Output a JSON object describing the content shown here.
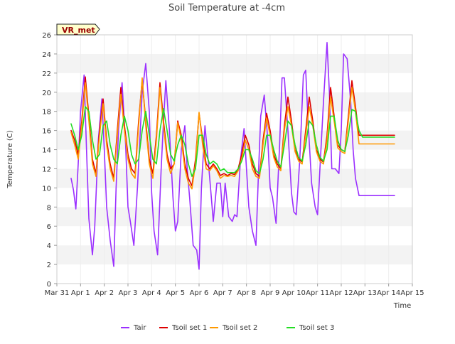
{
  "chart_data": {
    "type": "line",
    "title": "Soil Temperature at -4cm",
    "xlabel": "Time",
    "ylabel": "Temperature (C)",
    "station_label": "VR_met",
    "ylim": [
      0,
      26
    ],
    "y_ticks": [
      0,
      2,
      4,
      6,
      8,
      10,
      12,
      14,
      16,
      18,
      20,
      22,
      24,
      26
    ],
    "xlim": [
      0,
      15
    ],
    "x_ticks": [
      0,
      1,
      2,
      3,
      4,
      5,
      6,
      7,
      8,
      9,
      10,
      11,
      12,
      13,
      14,
      15
    ],
    "x_tick_labels": [
      "Mar 31",
      "Apr 1",
      "Apr 2",
      "Apr 3",
      "Apr 4",
      "Apr 5",
      "Apr 6",
      "Apr 7",
      "Apr 8",
      "Apr 9",
      "Apr 10",
      "Apr 11",
      "Apr 12",
      "Apr 13",
      "Apr 14",
      "Apr 15"
    ],
    "grid": "horizontal bands",
    "legend_position": "bottom",
    "series": [
      {
        "name": "Tair",
        "color": "#9b30ff",
        "x": [
          0.6,
          0.7,
          0.8,
          0.9,
          1.0,
          1.15,
          1.25,
          1.35,
          1.5,
          1.6,
          1.75,
          1.9,
          2.0,
          2.1,
          2.25,
          2.4,
          2.5,
          2.6,
          2.75,
          2.9,
          3.0,
          3.1,
          3.25,
          3.4,
          3.5,
          3.6,
          3.75,
          3.9,
          4.0,
          4.1,
          4.25,
          4.4,
          4.5,
          4.6,
          4.75,
          4.9,
          5.0,
          5.1,
          5.25,
          5.4,
          5.5,
          5.6,
          5.75,
          5.9,
          6.0,
          6.1,
          6.25,
          6.4,
          6.5,
          6.6,
          6.75,
          6.9,
          7.0,
          7.1,
          7.25,
          7.4,
          7.5,
          7.6,
          7.75,
          7.9,
          8.0,
          8.1,
          8.25,
          8.4,
          8.5,
          8.6,
          8.75,
          8.9,
          9.0,
          9.1,
          9.25,
          9.4,
          9.5,
          9.6,
          9.75,
          9.9,
          10.0,
          10.1,
          10.25,
          10.4,
          10.5,
          10.6,
          10.75,
          10.9,
          11.0,
          11.1,
          11.25,
          11.4,
          11.5,
          11.6,
          11.75,
          11.9,
          12.0,
          12.1,
          12.25,
          12.4,
          12.5,
          12.6,
          12.75,
          12.9,
          13.0,
          13.1,
          13.25,
          13.4,
          13.5,
          13.6,
          13.75,
          13.9,
          14.0,
          14.1,
          14.25
        ],
        "values": [
          11.0,
          9.8,
          7.8,
          12.5,
          18.0,
          21.8,
          14.0,
          6.8,
          3.0,
          6.0,
          15.0,
          19.3,
          14.0,
          8.0,
          4.5,
          1.8,
          10.0,
          16.0,
          21.0,
          14.5,
          8.0,
          6.5,
          4.0,
          10.0,
          15.0,
          20.0,
          23.0,
          18.0,
          9.5,
          5.5,
          3.0,
          12.0,
          17.0,
          21.2,
          16.0,
          9.0,
          5.5,
          6.5,
          14.0,
          16.5,
          12.0,
          9.0,
          4.0,
          3.5,
          1.5,
          10.0,
          16.5,
          12.5,
          9.5,
          6.5,
          10.5,
          10.5,
          7.0,
          10.5,
          7.0,
          6.5,
          7.2,
          7.0,
          13.0,
          16.2,
          12.0,
          8.0,
          5.5,
          4.0,
          11.0,
          17.5,
          19.7,
          15.0,
          10.0,
          9.0,
          6.3,
          14.5,
          21.5,
          21.5,
          16.0,
          9.5,
          7.5,
          7.2,
          13.0,
          21.8,
          22.3,
          17.0,
          10.5,
          8.0,
          7.2,
          12.0,
          19.0,
          25.2,
          20.0,
          12.0,
          12.0,
          11.5,
          16.0,
          24.0,
          23.5,
          19.0,
          14.0,
          11.0,
          9.2,
          9.2,
          9.2,
          9.2,
          9.2,
          9.2,
          9.2,
          9.2,
          9.2,
          9.2,
          9.2,
          9.2,
          9.2
        ]
      },
      {
        "name": "Tsoil set 1",
        "color": "#dd0000",
        "x": [
          0.6,
          0.75,
          0.9,
          1.05,
          1.2,
          1.35,
          1.5,
          1.65,
          1.8,
          1.95,
          2.1,
          2.25,
          2.4,
          2.55,
          2.7,
          2.85,
          3.0,
          3.15,
          3.3,
          3.45,
          3.6,
          3.75,
          3.9,
          4.05,
          4.2,
          4.35,
          4.5,
          4.65,
          4.8,
          4.95,
          5.1,
          5.25,
          5.4,
          5.55,
          5.7,
          5.85,
          6.0,
          6.15,
          6.3,
          6.45,
          6.6,
          6.75,
          6.9,
          7.05,
          7.2,
          7.35,
          7.5,
          7.65,
          7.8,
          7.95,
          8.1,
          8.25,
          8.4,
          8.55,
          8.7,
          8.85,
          9.0,
          9.15,
          9.3,
          9.45,
          9.6,
          9.75,
          9.9,
          10.05,
          10.2,
          10.35,
          10.5,
          10.65,
          10.8,
          10.95,
          11.1,
          11.25,
          11.4,
          11.55,
          11.7,
          11.85,
          12.0,
          12.15,
          12.3,
          12.45,
          12.6,
          12.75,
          12.9,
          13.05,
          13.2,
          13.35,
          13.5,
          13.65,
          13.8,
          13.95,
          14.1,
          14.25
        ],
        "values": [
          16.0,
          15.0,
          13.5,
          17.0,
          21.6,
          17.5,
          13.0,
          11.5,
          16.0,
          19.3,
          15.0,
          12.5,
          11.0,
          16.0,
          20.5,
          16.5,
          13.5,
          12.0,
          11.5,
          17.0,
          21.3,
          17.0,
          13.0,
          11.5,
          15.5,
          21.0,
          17.0,
          13.5,
          12.0,
          12.5,
          17.0,
          15.5,
          12.5,
          11.0,
          10.2,
          13.0,
          17.8,
          15.0,
          12.5,
          12.0,
          12.5,
          12.0,
          11.3,
          11.5,
          11.3,
          11.5,
          11.4,
          12.0,
          13.5,
          15.5,
          14.5,
          12.5,
          11.5,
          11.2,
          15.0,
          17.8,
          16.0,
          13.5,
          12.5,
          12.0,
          16.5,
          19.5,
          17.0,
          14.0,
          13.0,
          12.7,
          16.0,
          19.5,
          17.0,
          14.0,
          13.0,
          12.7,
          15.5,
          20.5,
          17.5,
          14.5,
          14.0,
          13.8,
          17.5,
          21.2,
          18.5,
          15.5,
          15.5,
          15.5,
          15.5,
          15.5,
          15.5,
          15.5,
          15.5,
          15.5,
          15.5,
          15.5
        ]
      },
      {
        "name": "Tsoil set 2",
        "color": "#ff9900",
        "x": [
          0.6,
          0.75,
          0.9,
          1.05,
          1.2,
          1.35,
          1.5,
          1.65,
          1.8,
          1.95,
          2.1,
          2.25,
          2.4,
          2.55,
          2.7,
          2.85,
          3.0,
          3.15,
          3.3,
          3.45,
          3.6,
          3.75,
          3.9,
          4.05,
          4.2,
          4.35,
          4.5,
          4.65,
          4.8,
          4.95,
          5.1,
          5.25,
          5.4,
          5.55,
          5.7,
          5.85,
          6.0,
          6.15,
          6.3,
          6.45,
          6.6,
          6.75,
          6.9,
          7.05,
          7.2,
          7.35,
          7.5,
          7.65,
          7.8,
          7.95,
          8.1,
          8.25,
          8.4,
          8.55,
          8.7,
          8.85,
          9.0,
          9.15,
          9.3,
          9.45,
          9.6,
          9.75,
          9.9,
          10.05,
          10.2,
          10.35,
          10.5,
          10.65,
          10.8,
          10.95,
          11.1,
          11.25,
          11.4,
          11.55,
          11.7,
          11.85,
          12.0,
          12.15,
          12.3,
          12.45,
          12.6,
          12.75,
          12.9,
          13.05,
          13.2,
          13.35,
          13.5,
          13.65,
          13.8,
          13.95,
          14.1,
          14.25
        ],
        "values": [
          15.8,
          14.5,
          13.0,
          16.5,
          21.0,
          17.0,
          12.5,
          11.2,
          15.5,
          18.8,
          14.5,
          12.0,
          10.7,
          15.5,
          19.8,
          16.0,
          13.0,
          11.5,
          11.0,
          16.5,
          21.5,
          16.5,
          12.5,
          11.0,
          15.0,
          20.5,
          16.5,
          13.0,
          11.5,
          12.5,
          16.8,
          15.0,
          12.0,
          10.5,
          9.9,
          12.5,
          17.9,
          14.5,
          12.0,
          11.8,
          12.3,
          11.8,
          11.0,
          11.3,
          11.2,
          11.3,
          11.2,
          11.8,
          13.0,
          15.0,
          14.0,
          12.0,
          11.2,
          11.0,
          14.5,
          17.3,
          15.5,
          13.2,
          12.2,
          11.8,
          16.0,
          18.5,
          16.5,
          13.8,
          12.8,
          12.5,
          15.5,
          18.5,
          16.5,
          13.8,
          12.8,
          12.5,
          15.0,
          19.5,
          17.0,
          14.2,
          13.8,
          13.6,
          17.0,
          20.5,
          18.0,
          14.6,
          14.6,
          14.6,
          14.6,
          14.6,
          14.6,
          14.6,
          14.6,
          14.6,
          14.6,
          14.6
        ]
      },
      {
        "name": "Tsoil set 3",
        "color": "#22dd22",
        "x": [
          0.6,
          0.75,
          0.9,
          1.05,
          1.2,
          1.35,
          1.5,
          1.65,
          1.8,
          1.95,
          2.1,
          2.25,
          2.4,
          2.55,
          2.7,
          2.85,
          3.0,
          3.15,
          3.3,
          3.45,
          3.6,
          3.75,
          3.9,
          4.05,
          4.2,
          4.35,
          4.5,
          4.65,
          4.8,
          4.95,
          5.1,
          5.25,
          5.4,
          5.55,
          5.7,
          5.85,
          6.0,
          6.15,
          6.3,
          6.45,
          6.6,
          6.75,
          6.9,
          7.05,
          7.2,
          7.35,
          7.5,
          7.65,
          7.8,
          7.95,
          8.1,
          8.25,
          8.4,
          8.55,
          8.7,
          8.85,
          9.0,
          9.15,
          9.3,
          9.45,
          9.6,
          9.75,
          9.9,
          10.05,
          10.2,
          10.35,
          10.5,
          10.65,
          10.8,
          10.95,
          11.1,
          11.25,
          11.4,
          11.55,
          11.7,
          11.85,
          12.0,
          12.15,
          12.3,
          12.45,
          12.6,
          12.75,
          12.9,
          13.05,
          13.2,
          13.35,
          13.5,
          13.65,
          13.8,
          13.95,
          14.1,
          14.25
        ],
        "values": [
          16.7,
          15.5,
          14.0,
          15.5,
          18.5,
          18.0,
          15.0,
          13.0,
          13.5,
          16.5,
          17.0,
          14.5,
          13.0,
          12.5,
          15.5,
          17.5,
          16.0,
          13.5,
          12.5,
          13.0,
          16.0,
          18.0,
          15.5,
          13.0,
          12.5,
          16.0,
          18.3,
          16.0,
          13.5,
          12.8,
          14.5,
          15.5,
          14.5,
          12.5,
          11.2,
          12.0,
          15.5,
          15.5,
          13.5,
          12.5,
          12.8,
          12.5,
          11.8,
          12.0,
          11.6,
          11.6,
          11.6,
          12.0,
          12.8,
          14.0,
          14.0,
          13.0,
          11.8,
          11.5,
          13.0,
          15.5,
          15.5,
          14.0,
          12.8,
          12.2,
          14.5,
          17.0,
          16.5,
          14.5,
          13.2,
          12.8,
          14.5,
          17.0,
          16.5,
          14.5,
          13.2,
          12.8,
          14.0,
          17.5,
          17.5,
          15.0,
          14.0,
          13.8,
          15.5,
          18.2,
          18.0,
          16.0,
          15.3,
          15.3,
          15.3,
          15.3,
          15.3,
          15.3,
          15.3,
          15.3,
          15.3,
          15.3
        ]
      }
    ]
  }
}
